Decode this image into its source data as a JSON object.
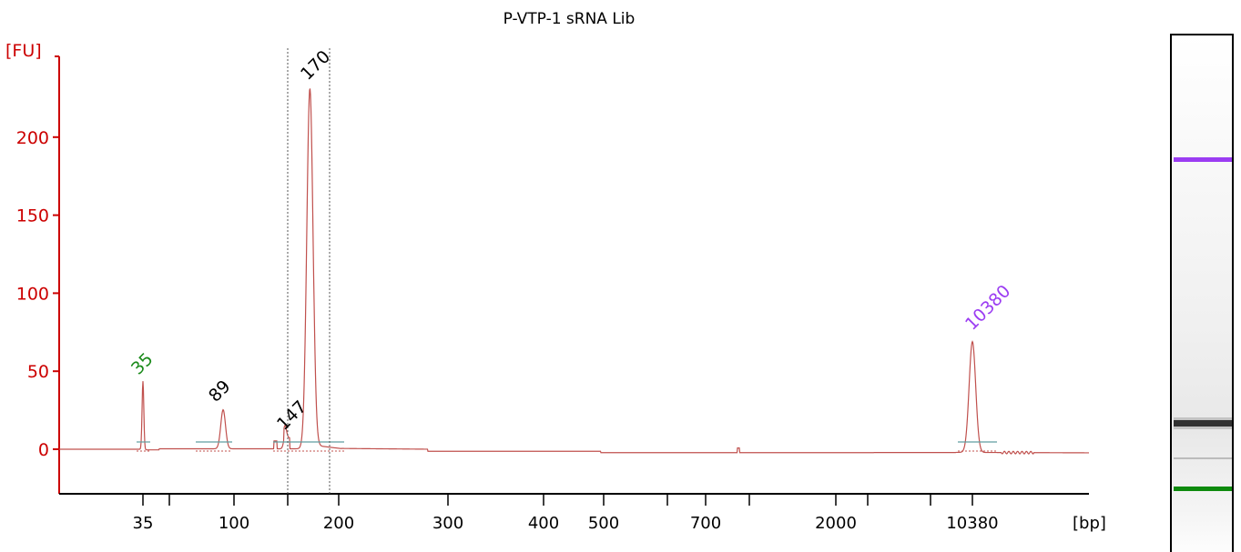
{
  "chart_data": {
    "type": "line",
    "title": "P-VTP-1 sRNA Lib",
    "ylabel": "[FU]",
    "xlabel": "[bp]",
    "ylim": [
      -27,
      253
    ],
    "yticks": [
      0,
      50,
      100,
      150,
      200
    ],
    "xticks": [
      "35",
      "100",
      "200",
      "300",
      "400",
      "500",
      "700",
      "2000",
      "10380"
    ],
    "x_scale": "non-linear (ladder calibrated)",
    "series": [
      {
        "x": [
          35,
          89,
          147,
          170,
          10380
        ],
        "y": [
          44,
          25,
          8,
          231,
          71
        ]
      }
    ],
    "peaks": [
      {
        "label": "35",
        "x": 35,
        "height": 44,
        "color": "#1a8a1a"
      },
      {
        "label": "89",
        "x": 89,
        "height": 25,
        "color": "#000000"
      },
      {
        "label": "147",
        "x": 147,
        "height": 8,
        "color": "#000000"
      },
      {
        "label": "170",
        "x": 170,
        "height": 231,
        "color": "#000000"
      },
      {
        "label": "10380",
        "x": 10380,
        "height": 71,
        "color": "#9b3cf2"
      }
    ],
    "gel_bands": [
      {
        "marker": "10380",
        "color": "#9b3cf2"
      },
      {
        "marker": "170",
        "color": "#111111"
      },
      {
        "marker": "35",
        "color": "#0e8a0e"
      }
    ],
    "trace_color": "#c0504d",
    "axis_color": "#cc0000",
    "baseline_color": "#5f9ea0"
  }
}
